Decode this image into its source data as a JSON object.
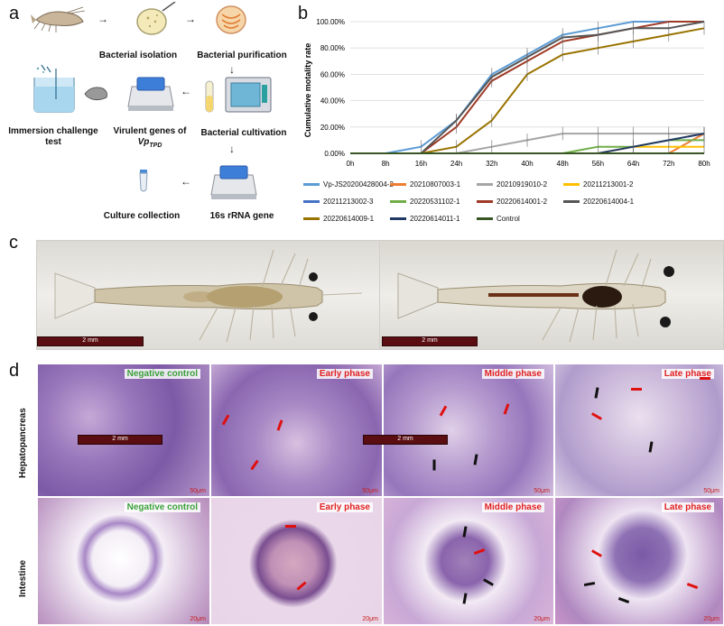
{
  "panels": {
    "a": "a",
    "b": "b",
    "c": "c",
    "d": "d"
  },
  "flow": {
    "bacterial_isolation": "Bacterial isolation",
    "bacterial_purification": "Bacterial purification",
    "immersion_line1": "Immersion challenge",
    "immersion_line2": "test",
    "virulent_line1": "Virulent genes of",
    "virulent_line2": "Vp",
    "virulent_sub": "TPD",
    "bacterial_cultivation": "Bacterial cultivation",
    "culture_collection": "Culture collection",
    "rrna": "16s rRNA gene"
  },
  "icons": {
    "shrimp": "shrimp-icon",
    "petri1": "petri-dish-icon",
    "petri2": "petri-dish-colonies-icon",
    "tank": "aquarium-tank-icon",
    "analyzer": "pcr-machine-icon",
    "tube": "culture-tube-icon",
    "incubator": "incubator-icon",
    "vial": "vial-icon",
    "sequencer": "sequencer-icon"
  },
  "chart_data": {
    "type": "line",
    "ylabel": "Cumulative motality rate",
    "xlabel": "",
    "x": [
      "0h",
      "8h",
      "16h",
      "24h",
      "32h",
      "40h",
      "48h",
      "56h",
      "64h",
      "72h",
      "80h"
    ],
    "ylim": [
      0,
      100
    ],
    "yticks": [
      "0.00%",
      "20.00%",
      "40.00%",
      "60.00%",
      "80.00%",
      "100.00%"
    ],
    "grid": true,
    "legend_position": "bottom",
    "series": [
      {
        "name": "Vp-JS20200428004-2",
        "color": "#5b9bd5",
        "values": [
          0,
          0,
          5,
          25,
          60,
          75,
          90,
          95,
          100,
          100,
          100
        ]
      },
      {
        "name": "20210807003-1",
        "color": "#ed7d31",
        "values": [
          0,
          0,
          0,
          0,
          0,
          0,
          0,
          0,
          0,
          0,
          15
        ]
      },
      {
        "name": "20210919010-2",
        "color": "#a5a5a5",
        "values": [
          0,
          0,
          0,
          0,
          5,
          10,
          15,
          15,
          15,
          15,
          15
        ]
      },
      {
        "name": "20211213001-2",
        "color": "#ffc000",
        "values": [
          0,
          0,
          0,
          0,
          0,
          0,
          0,
          0,
          5,
          5,
          5
        ]
      },
      {
        "name": "20211213002-3",
        "color": "#4472c4",
        "values": [
          0,
          0,
          0,
          0,
          0,
          0,
          0,
          0,
          0,
          0,
          0
        ]
      },
      {
        "name": "20220531102-1",
        "color": "#70ad47",
        "values": [
          0,
          0,
          0,
          0,
          0,
          0,
          0,
          5,
          5,
          10,
          10
        ]
      },
      {
        "name": "20220614001-2",
        "color": "#9e3a26",
        "values": [
          0,
          0,
          0,
          20,
          55,
          70,
          85,
          90,
          95,
          100,
          100
        ]
      },
      {
        "name": "20220614004-1",
        "color": "#555555",
        "values": [
          0,
          0,
          0,
          25,
          58,
          73,
          88,
          90,
          95,
          95,
          100
        ]
      },
      {
        "name": "20220614009-1",
        "color": "#997300",
        "values": [
          0,
          0,
          0,
          5,
          25,
          60,
          75,
          80,
          85,
          90,
          95
        ]
      },
      {
        "name": "20220614011-1",
        "color": "#203864",
        "values": [
          0,
          0,
          0,
          0,
          0,
          0,
          0,
          0,
          5,
          10,
          15
        ]
      },
      {
        "name": "Control",
        "color": "#375623",
        "values": [
          0,
          0,
          0,
          0,
          0,
          0,
          0,
          0,
          0,
          0,
          0
        ]
      }
    ]
  },
  "photos": {
    "left_scale": "2 mm",
    "right_scale": "2 mm"
  },
  "histology": {
    "row1_label": "Hepatopancreas",
    "row2_label": "Intestine",
    "titles": [
      "Negative control",
      "Early phase",
      "Middle phase",
      "Late phase",
      "Negative control",
      "Early phase",
      "Middle phase",
      "Late phase"
    ],
    "title_colors": [
      "#3aa03a",
      "#e02020",
      "#e02020",
      "#e02020",
      "#3aa03a",
      "#e02020",
      "#e02020",
      "#e02020"
    ],
    "row1_scales": [
      "50μm",
      "50μm",
      "50μm",
      "50μm"
    ],
    "row2_scales": [
      "20μm",
      "20μm",
      "20μm",
      "20μm"
    ],
    "overlay_scale_left": "2 mm",
    "overlay_scale_right": "2 mm"
  }
}
